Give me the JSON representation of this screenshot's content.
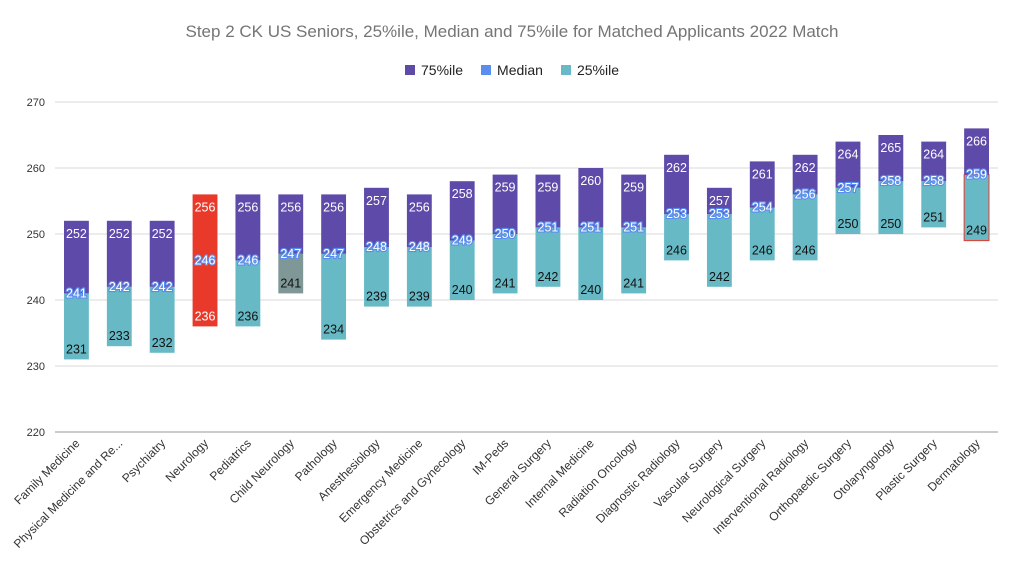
{
  "chart_data": {
    "type": "bar",
    "title": "Step 2 CK US Seniors, 25%ile, Median and 75%ile for Matched Applicants 2022 Match",
    "xlabel": "",
    "ylabel": "",
    "ylim": [
      220,
      270
    ],
    "yticks": [
      220,
      230,
      240,
      250,
      260,
      270
    ],
    "grid": true,
    "legend_position": "top",
    "colors": {
      "p75": "#5e4aa8",
      "median": "#5b8def",
      "p25": "#67bac5",
      "highlight_red": "#e8392a",
      "highlight_gray": "#7f9797"
    },
    "series": [
      {
        "name": "75%ile",
        "color": "#5e4aa8"
      },
      {
        "name": "Median",
        "color": "#5b8def"
      },
      {
        "name": "25%ile",
        "color": "#67bac5"
      }
    ],
    "categories": [
      "Family Medicine",
      "Physical Medicine and Re...",
      "Psychiatry",
      "Neurology",
      "Pediatrics",
      "Child Neurology",
      "Pathology",
      "Anesthesiology",
      "Emergency Medicine",
      "Obstetrics and Gynecology",
      "IM-Peds",
      "General Surgery",
      "Internal Medicine",
      "Radiation Oncology",
      "Diagnostic Radiology",
      "Vascular Surgery",
      "Neurological Surgery",
      "Interventional Radiology",
      "Orthopaedic Surgery",
      "Otolaryngology",
      "Plastic Surgery",
      "Dermatology"
    ],
    "p25": [
      231,
      233,
      232,
      236,
      236,
      241,
      234,
      239,
      239,
      240,
      241,
      242,
      240,
      241,
      246,
      242,
      246,
      246,
      250,
      250,
      251,
      249
    ],
    "median": [
      241,
      242,
      242,
      246,
      246,
      247,
      247,
      248,
      248,
      249,
      250,
      251,
      251,
      251,
      253,
      253,
      254,
      256,
      257,
      258,
      258,
      259
    ],
    "p75": [
      252,
      252,
      252,
      256,
      256,
      256,
      256,
      257,
      256,
      258,
      259,
      259,
      260,
      259,
      262,
      257,
      261,
      262,
      264,
      265,
      264,
      266
    ]
  }
}
